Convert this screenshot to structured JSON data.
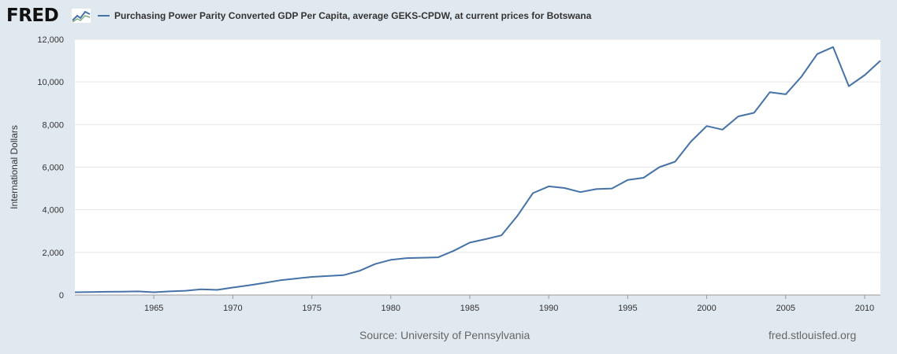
{
  "header": {
    "logo_text": "FRED",
    "series_title": "Purchasing Power Parity Converted GDP Per Capita, average GEKS-CPDW, at current prices for Botswana"
  },
  "footer": {
    "source": "Source: University of Pennsylvania",
    "url": "fred.stlouisfed.org"
  },
  "colors": {
    "background": "#e1e9f0",
    "plot_background": "#ffffff",
    "series_line": "#4572a7",
    "grid": "#e6e6e6"
  },
  "chart_data": {
    "type": "line",
    "title": "",
    "xlabel": "",
    "ylabel": "International Dollars",
    "ylim": [
      0,
      12000
    ],
    "xlim": [
      1960,
      2011
    ],
    "yticks": [
      0,
      2000,
      4000,
      6000,
      8000,
      10000,
      12000
    ],
    "ytick_labels": [
      "0",
      "2,000",
      "4,000",
      "6,000",
      "8,000",
      "10,000",
      "12,000"
    ],
    "xticks": [
      1965,
      1970,
      1975,
      1980,
      1985,
      1990,
      1995,
      2000,
      2005,
      2010
    ],
    "xtick_labels": [
      "1965",
      "1970",
      "1975",
      "1980",
      "1985",
      "1990",
      "1995",
      "2000",
      "2005",
      "2010"
    ],
    "grid": true,
    "legend_position": "top-left",
    "series": [
      {
        "name": "Purchasing Power Parity Converted GDP Per Capita, average GEKS-CPDW, at current prices for Botswana",
        "x": [
          1960,
          1961,
          1962,
          1963,
          1964,
          1965,
          1966,
          1967,
          1968,
          1969,
          1970,
          1971,
          1972,
          1973,
          1974,
          1975,
          1976,
          1977,
          1978,
          1979,
          1980,
          1981,
          1982,
          1983,
          1984,
          1985,
          1986,
          1987,
          1988,
          1989,
          1990,
          1991,
          1992,
          1993,
          1994,
          1995,
          1996,
          1997,
          1998,
          1999,
          2000,
          2001,
          2002,
          2003,
          2004,
          2005,
          2006,
          2007,
          2008,
          2009,
          2010,
          2011
        ],
        "values": [
          130,
          140,
          150,
          160,
          170,
          130,
          170,
          200,
          270,
          240,
          350,
          450,
          570,
          690,
          770,
          850,
          890,
          930,
          1130,
          1450,
          1650,
          1730,
          1750,
          1770,
          2080,
          2460,
          2620,
          2800,
          3700,
          4780,
          5100,
          5020,
          4830,
          4970,
          5000,
          5400,
          5500,
          6000,
          6260,
          7200,
          7930,
          7760,
          8380,
          8550,
          9520,
          9420,
          10250,
          11310,
          11640,
          9800,
          10320,
          11000
        ]
      }
    ]
  }
}
